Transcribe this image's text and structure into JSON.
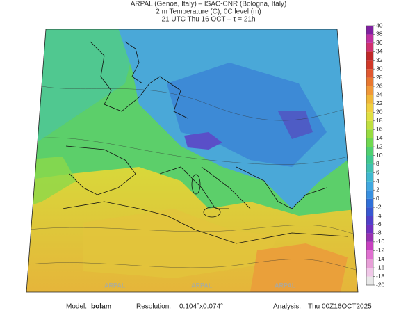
{
  "header": {
    "line1": "ARPAL (Genoa, Italy)  –  ISAC-CNR (Bologna, Italy)",
    "line2": "2 m Temperature (C), 0C level (m)",
    "line3": "21 UTC Thu 16 OCT  –  τ = 21h"
  },
  "colorbar": {
    "ticks": [
      40,
      38,
      36,
      34,
      32,
      30,
      28,
      26,
      24,
      22,
      20,
      18,
      16,
      14,
      12,
      10,
      8,
      6,
      4,
      2,
      0,
      -2,
      -4,
      -6,
      -8,
      -10,
      -12,
      -14,
      -16,
      -18,
      -20
    ],
    "colors": [
      "#e8e8e8",
      "#f0c8e8",
      "#e8a0d8",
      "#e070d0",
      "#c840c0",
      "#9830b0",
      "#7030c0",
      "#5040c8",
      "#3858d0",
      "#3070d8",
      "#3890e0",
      "#40a8e0",
      "#40b8d0",
      "#40c0b0",
      "#40c890",
      "#50d070",
      "#70d850",
      "#98dc40",
      "#c0e040",
      "#e0e040",
      "#f0d040",
      "#f0b838",
      "#f09838",
      "#e87830",
      "#e05830",
      "#d03828",
      "#c02828",
      "#d03070",
      "#c030a0",
      "#8020a0"
    ]
  },
  "watermark": "ARPAL",
  "footer": {
    "model_label": "Model:",
    "model": "bolam",
    "resolution_label": "Resolution:",
    "resolution": "0.104°x0.074°",
    "analysis_label": "Analysis:",
    "analysis": "Thu 00Z16OCT2025"
  }
}
